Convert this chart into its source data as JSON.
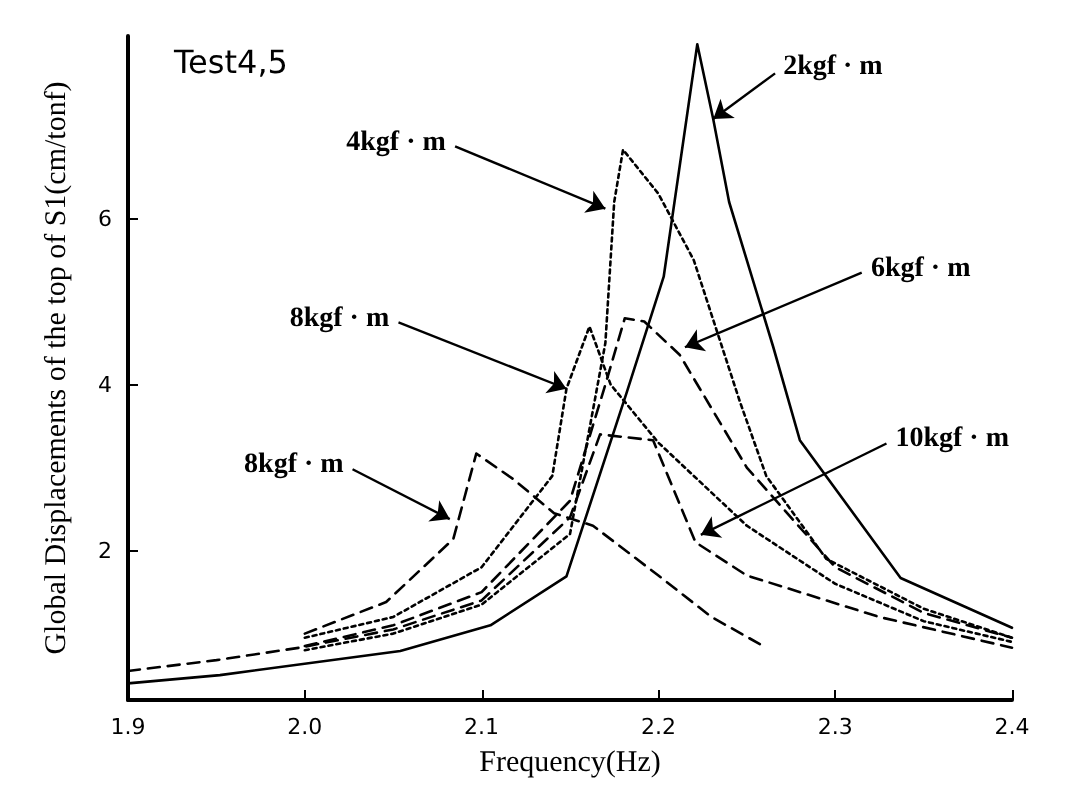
{
  "chart_data": {
    "type": "line",
    "xlabel": "Frequency(Hz)",
    "ylabel": "Global Displacements of the top of S1(cm/tonf)",
    "xlim": [
      1.9,
      2.4
    ],
    "xticks": [
      1.9,
      {
        "value": 2,
        "label": "2.0"
      },
      2.1,
      2.2,
      2.3,
      2.4
    ],
    "ylim": [
      0.2,
      8.2
    ],
    "yticks": [
      2,
      4,
      6
    ],
    "marker": "none",
    "series": [
      {
        "color": "#000000",
        "line_style": "solid",
        "x": [
          1.9,
          1.952,
          2.054,
          2.105,
          2.148,
          2.182,
          2.203,
          2.222,
          2.231,
          2.24,
          2.265,
          2.28,
          2.337,
          2.4
        ],
        "values": [
          0.4,
          0.5,
          0.79,
          1.1,
          1.69,
          3.9,
          5.3,
          8.1,
          7.2,
          6.2,
          4.45,
          3.33,
          1.67,
          1.07
        ]
      },
      {
        "color": "#000000",
        "line_style": "dotted",
        "x": [
          2.0,
          2.05,
          2.1,
          2.15,
          2.17,
          2.175,
          2.18,
          2.2,
          2.22,
          2.246,
          2.261,
          2.295,
          2.35,
          2.4
        ],
        "values": [
          0.8,
          1.0,
          1.35,
          2.2,
          4.5,
          6.2,
          6.83,
          6.3,
          5.5,
          3.8,
          2.9,
          1.9,
          1.3,
          0.95
        ]
      },
      {
        "color": "#000000",
        "line_style": "dotted",
        "x": [
          2.0,
          2.05,
          2.1,
          2.14,
          2.148,
          2.161,
          2.173,
          2.2,
          2.25,
          2.3,
          2.35,
          2.4
        ],
        "values": [
          0.95,
          1.2,
          1.8,
          2.9,
          3.95,
          4.7,
          4.0,
          3.3,
          2.3,
          1.6,
          1.15,
          0.9
        ]
      },
      {
        "color": "#000000",
        "line_style": "dashed",
        "x": [
          2.0,
          2.05,
          2.1,
          2.15,
          2.17,
          2.181,
          2.192,
          2.212,
          2.25,
          2.3,
          2.35,
          2.4
        ],
        "values": [
          0.85,
          1.1,
          1.5,
          2.6,
          4.0,
          4.8,
          4.76,
          4.36,
          3.0,
          1.8,
          1.25,
          0.95
        ]
      },
      {
        "color": "#000000",
        "line_style": "dashed",
        "x": [
          1.9,
          1.95,
          1.997,
          2.05,
          2.1,
          2.15,
          2.167,
          2.197,
          2.221,
          2.25,
          2.325,
          2.4
        ],
        "values": [
          0.55,
          0.68,
          0.83,
          1.05,
          1.4,
          2.4,
          3.4,
          3.33,
          2.1,
          1.7,
          1.2,
          0.83
        ]
      },
      {
        "color": "#000000",
        "line_style": "dashed",
        "x": [
          2.0,
          2.046,
          2.084,
          2.097,
          2.118,
          2.141,
          2.163,
          2.2,
          2.23,
          2.261
        ],
        "values": [
          1.0,
          1.38,
          2.14,
          3.17,
          2.86,
          2.45,
          2.3,
          1.7,
          1.2,
          0.83
        ]
      }
    ],
    "annotations": [
      "Test4,5",
      {
        "text": "2kgf · m",
        "x": 2.231,
        "y": 7.2
      },
      {
        "text": "4kgf · m",
        "x": 2.17,
        "y": 6.12
      },
      {
        "text": "8kgf · m",
        "x": 2.148,
        "y": 3.95
      },
      {
        "text": "6kgf · m",
        "x": 2.215,
        "y": 4.45
      },
      {
        "text": "10kgf · m",
        "x": 2.224,
        "y": 2.19
      },
      {
        "text": "8kgf · m",
        "x": 2.082,
        "y": 2.38
      }
    ]
  }
}
